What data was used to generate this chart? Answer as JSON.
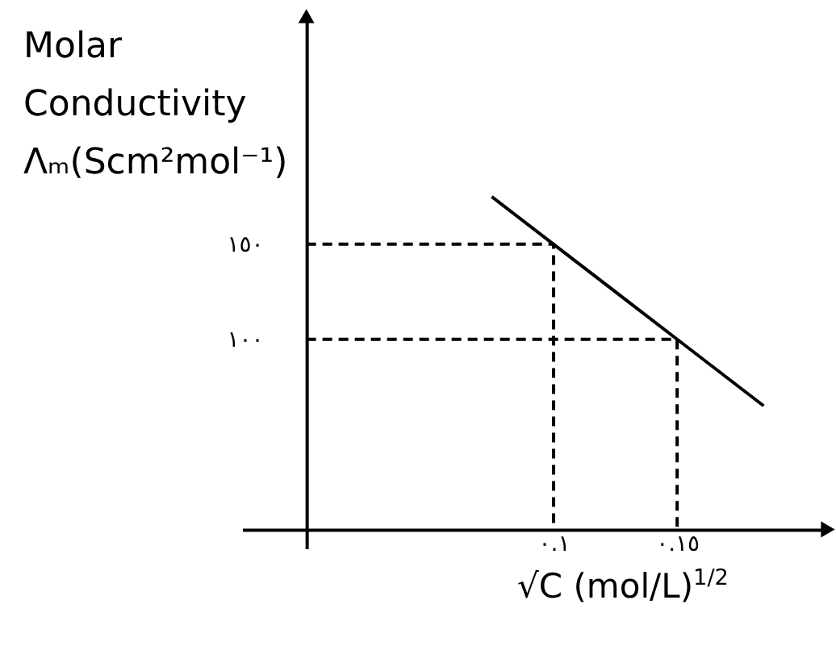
{
  "chart_data": {
    "type": "line",
    "xlabel": "√C (mol/L)$^{1/2}$",
    "ylabel": "Molar Conductivity Λₘ(Scm²mol⁻¹)",
    "xlim": [
      -0.026,
      0.211
    ],
    "ylim": [
      -10,
      270
    ],
    "xticks": [
      {
        "value": 0.1,
        "label": "٠.١"
      },
      {
        "value": 0.15,
        "label": "٠.١٥"
      }
    ],
    "yticks": [
      {
        "value": 100,
        "label": "١٠٠"
      },
      {
        "value": 150,
        "label": "١٥٠"
      }
    ],
    "series": [
      {
        "color": "#000000",
        "x": [
          0.075,
          0.1,
          0.15,
          0.185
        ],
        "values": [
          175,
          150,
          100,
          65
        ],
        "line_style": "solid"
      },
      {
        "color": "#000000",
        "x": [
          0,
          0.1,
          0.1
        ],
        "values": [
          150,
          150,
          0
        ],
        "line_style": "dashed"
      },
      {
        "color": "#000000",
        "x": [
          0,
          0.15,
          0.15
        ],
        "values": [
          100,
          100,
          0
        ],
        "line_style": "dashed"
      }
    ],
    "grid": false,
    "marker": "none"
  }
}
